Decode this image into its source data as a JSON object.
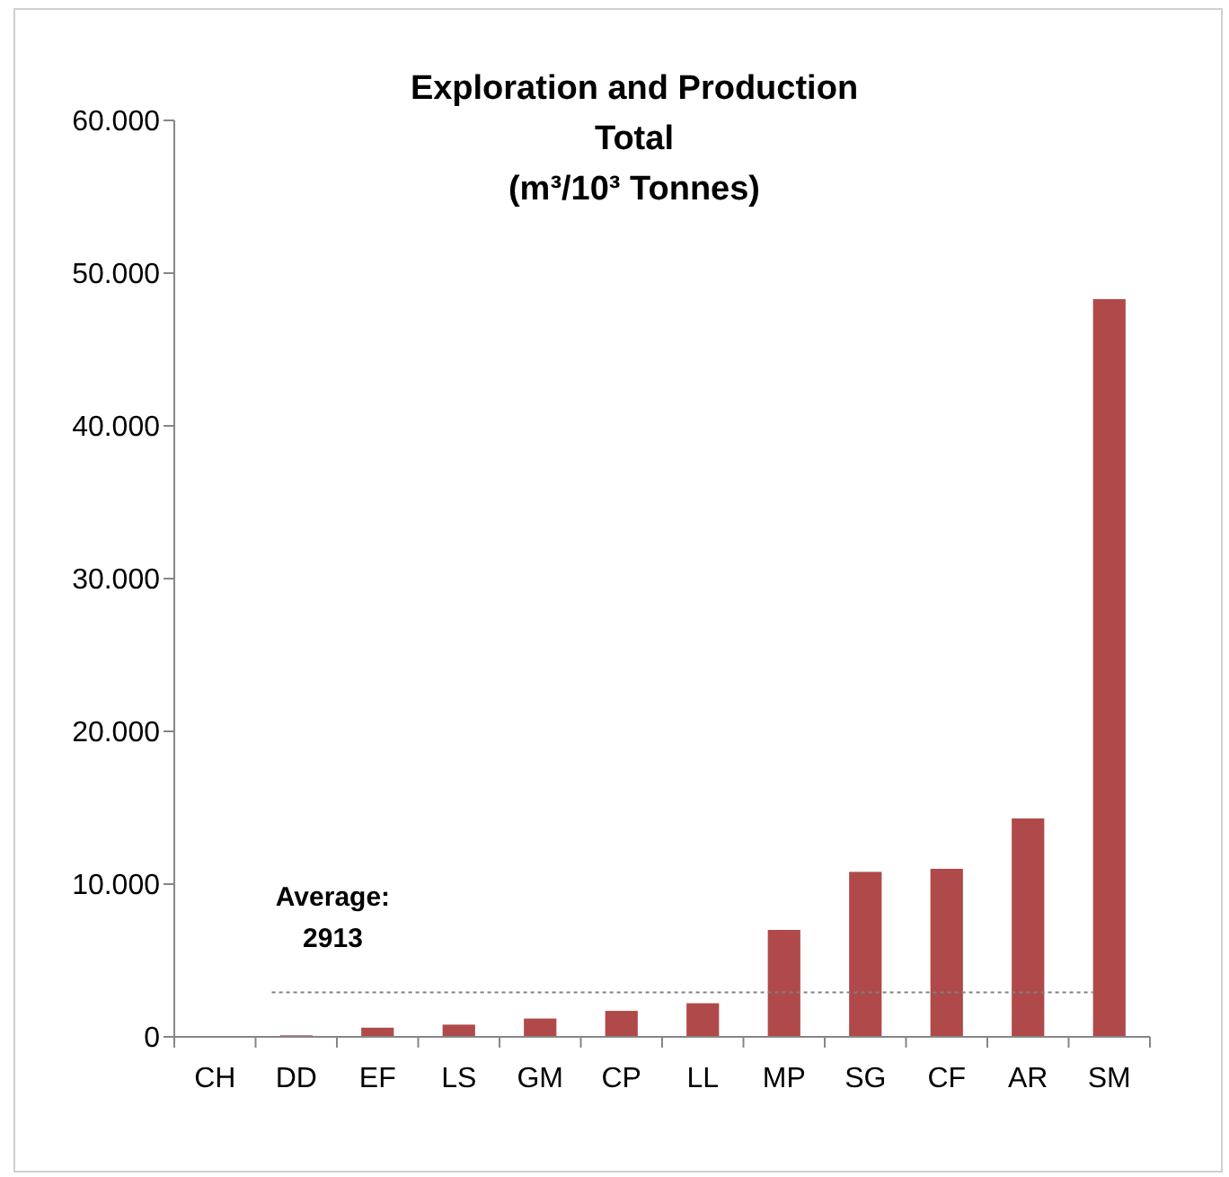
{
  "chart_data": {
    "type": "bar",
    "title": "Exploration and Production\nTotal\n(m³/10³ Tonnes)",
    "categories": [
      "CH",
      "DD",
      "EF",
      "LS",
      "GM",
      "CP",
      "LL",
      "MP",
      "SG",
      "CF",
      "AR",
      "SM"
    ],
    "values": [
      0,
      100,
      600,
      800,
      1200,
      1700,
      2200,
      7000,
      10800,
      11000,
      14300,
      48300
    ],
    "color": "#b0494a",
    "ylim": [
      0,
      60000
    ],
    "yticks": [
      0,
      {
        "value": 10000,
        "label": "10.000"
      },
      {
        "value": 20000,
        "label": "20.000"
      },
      {
        "value": 30000,
        "label": "30.000"
      },
      {
        "value": 40000,
        "label": "40.000"
      },
      {
        "value": 50000,
        "label": "50.000"
      },
      {
        "value": 60000,
        "label": "60.000"
      }
    ],
    "ref_lines": [
      {
        "axis": "y",
        "value": 2913,
        "label": "Average:\n2913",
        "color": "#808080",
        "line_style": "dotted"
      }
    ],
    "grid": false
  }
}
